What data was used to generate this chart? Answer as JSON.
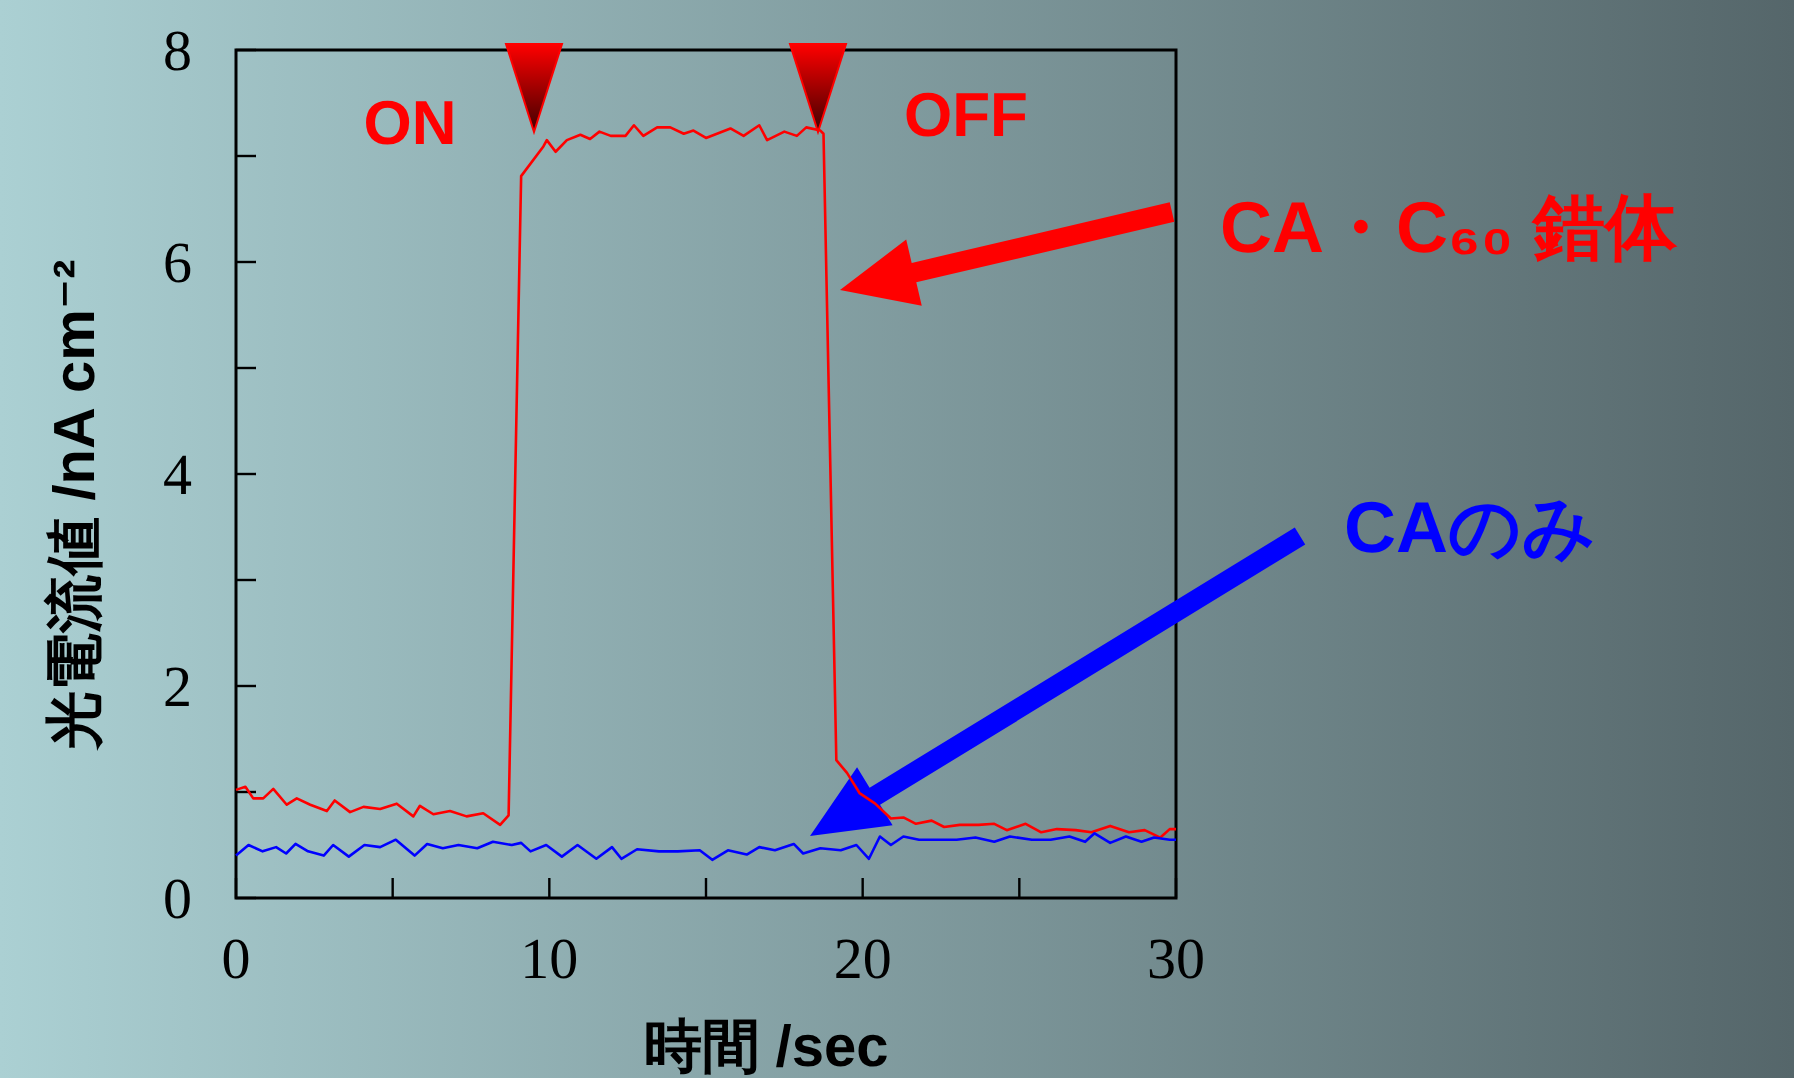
{
  "chart_data": {
    "type": "line",
    "xlabel": "時間 /sec",
    "ylabel": "光電流値 /nA cm⁻²",
    "annotations": [
      "ON",
      "OFF"
    ],
    "xlim": [
      0,
      30
    ],
    "ylim": [
      0,
      8
    ],
    "xticks": [
      0,
      {
        "value": 5,
        "label": null
      },
      10,
      {
        "value": 15,
        "label": null
      },
      20,
      {
        "value": 25,
        "label": null
      },
      30
    ],
    "yticks": [
      0,
      {
        "value": 1,
        "label": null
      },
      2,
      {
        "value": 3,
        "label": null
      },
      4,
      {
        "value": 5,
        "label": null
      },
      6,
      {
        "value": 7,
        "label": null
      },
      8
    ],
    "grid": false,
    "legend": "right",
    "marker": "none",
    "line_style": "solid",
    "series": [
      {
        "name": "CA・C₆₀ 錯体",
        "color": "#ff0000",
        "x": [
          0,
          0.3,
          0.55,
          0.87,
          1.19,
          1.62,
          1.94,
          2.37,
          2.9,
          3.15,
          3.64,
          4.07,
          4.6,
          5.13,
          5.66,
          5.87,
          6.3,
          6.83,
          7.36,
          7.89,
          8.43,
          8.7,
          9.1,
          9.81,
          9.92,
          10.2,
          10.56,
          10.99,
          11.3,
          11.6,
          11.96,
          12.43,
          12.7,
          13.0,
          13.44,
          13.86,
          14.29,
          14.6,
          15.0,
          15.35,
          15.78,
          16.2,
          16.7,
          16.95,
          17.5,
          17.9,
          18.2,
          18.65,
          18.75,
          19.16,
          19.5,
          19.9,
          20.4,
          20.9,
          21.3,
          21.7,
          22.2,
          22.6,
          23.1,
          23.7,
          24.2,
          24.6,
          25.2,
          25.7,
          26.2,
          26.8,
          27.3,
          27.9,
          28.5,
          29.0,
          29.5,
          29.8,
          30
        ],
        "values": [
          1.02,
          1.05,
          0.94,
          0.94,
          1.03,
          0.88,
          0.94,
          0.88,
          0.82,
          0.92,
          0.81,
          0.86,
          0.84,
          0.89,
          0.77,
          0.87,
          0.79,
          0.82,
          0.77,
          0.8,
          0.69,
          0.78,
          6.81,
          7.09,
          7.15,
          7.04,
          7.15,
          7.2,
          7.16,
          7.23,
          7.19,
          7.19,
          7.29,
          7.19,
          7.27,
          7.27,
          7.21,
          7.24,
          7.17,
          7.21,
          7.26,
          7.19,
          7.29,
          7.15,
          7.23,
          7.19,
          7.27,
          7.24,
          7.21,
          1.3,
          1.18,
          0.99,
          0.89,
          0.75,
          0.76,
          0.7,
          0.73,
          0.67,
          0.69,
          0.69,
          0.7,
          0.64,
          0.7,
          0.62,
          0.65,
          0.64,
          0.62,
          0.68,
          0.62,
          0.64,
          0.57,
          0.65,
          0.65
        ]
      },
      {
        "name": "CAのみ",
        "color": "#0000ff",
        "x": [
          0,
          0.4,
          0.85,
          1.28,
          1.6,
          1.9,
          2.3,
          2.8,
          3.1,
          3.6,
          4.1,
          4.6,
          5.1,
          5.7,
          6.1,
          6.6,
          7.1,
          7.7,
          8.2,
          8.8,
          9.1,
          9.4,
          9.9,
          10.4,
          10.9,
          11.5,
          12.0,
          12.3,
          12.8,
          13.5,
          14.1,
          14.8,
          15.2,
          15.7,
          16.3,
          16.7,
          17.2,
          17.8,
          18.1,
          18.65,
          19.3,
          19.8,
          20.2,
          20.55,
          20.9,
          21.3,
          21.8,
          22.5,
          23.0,
          23.6,
          24.2,
          24.7,
          25.4,
          26.0,
          26.6,
          27.1,
          27.4,
          27.9,
          28.4,
          28.9,
          29.3,
          29.8,
          30
        ],
        "values": [
          0.4,
          0.5,
          0.44,
          0.48,
          0.42,
          0.51,
          0.44,
          0.4,
          0.5,
          0.39,
          0.5,
          0.48,
          0.55,
          0.4,
          0.51,
          0.47,
          0.5,
          0.47,
          0.53,
          0.5,
          0.52,
          0.44,
          0.5,
          0.39,
          0.5,
          0.37,
          0.48,
          0.37,
          0.46,
          0.44,
          0.44,
          0.45,
          0.36,
          0.45,
          0.41,
          0.48,
          0.45,
          0.51,
          0.42,
          0.47,
          0.45,
          0.5,
          0.37,
          0.58,
          0.5,
          0.58,
          0.55,
          0.55,
          0.55,
          0.57,
          0.53,
          0.58,
          0.55,
          0.55,
          0.58,
          0.53,
          0.61,
          0.52,
          0.58,
          0.53,
          0.57,
          0.55,
          0.55
        ]
      }
    ]
  }
}
